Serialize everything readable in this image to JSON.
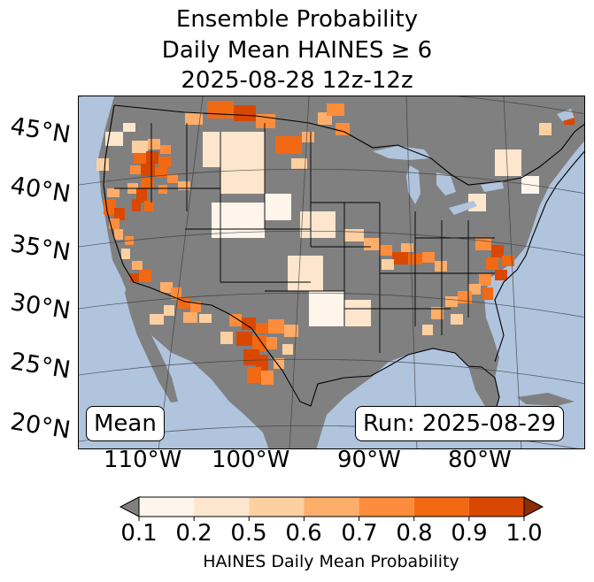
{
  "title": {
    "line1": "Ensemble Probability",
    "line2": "Daily Mean HAINES ≥ 6",
    "line3": "2025-08-28 12z-12z"
  },
  "map": {
    "ocean_color": "#b0c4de",
    "land_color": "#808080",
    "lat_labels": [
      "45°N",
      "40°N",
      "35°N",
      "30°N",
      "25°N",
      "20°N"
    ],
    "lon_labels": [
      "110°W",
      "100°W",
      "90°W",
      "80°W"
    ],
    "stat_box": "Mean",
    "run_box": "Run: 2025-08-29"
  },
  "colorbar": {
    "ticks": [
      "0.1",
      "0.2",
      "0.5",
      "0.6",
      "0.7",
      "0.8",
      "0.9",
      "1.0"
    ],
    "colors": [
      "#fff5eb",
      "#fee6ce",
      "#fdd0a2",
      "#fdae6b",
      "#fd8d3c",
      "#f16913",
      "#d94801"
    ],
    "under_color": "#808080",
    "over_color": "#8c2d04",
    "label": "HAINES Daily Mean Probability"
  }
}
